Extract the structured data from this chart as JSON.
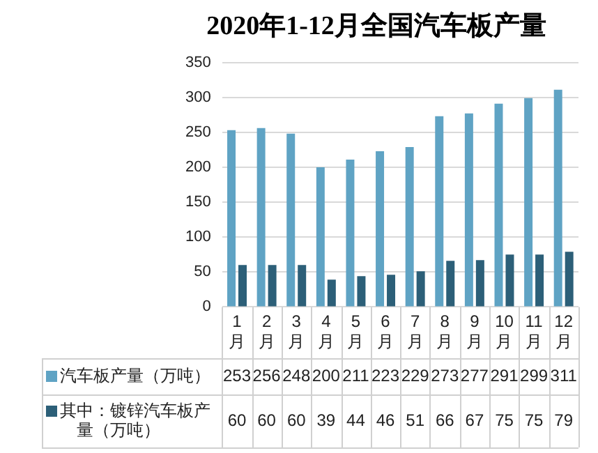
{
  "chart_data": {
    "type": "bar",
    "title": "2020年1-12月全国汽车板产量",
    "categories": [
      "1月",
      "2月",
      "3月",
      "4月",
      "5月",
      "6月",
      "7月",
      "8月",
      "9月",
      "10月",
      "11月",
      "12月"
    ],
    "series": [
      {
        "name": "汽车板产量（万吨）",
        "color": "#5fa3c4",
        "values": [
          253,
          256,
          248,
          200,
          211,
          223,
          229,
          273,
          277,
          291,
          299,
          311
        ]
      },
      {
        "name": "其中：镀锌汽车板产量（万吨）",
        "color": "#2c5f78",
        "values": [
          60,
          60,
          60,
          39,
          44,
          46,
          51,
          66,
          67,
          75,
          75,
          79
        ]
      }
    ],
    "ylim": [
      0,
      350
    ],
    "yticks": [
      0,
      50,
      100,
      150,
      200,
      250,
      300,
      350
    ],
    "grid": "y",
    "legend": "bottom",
    "data_labels": true
  }
}
